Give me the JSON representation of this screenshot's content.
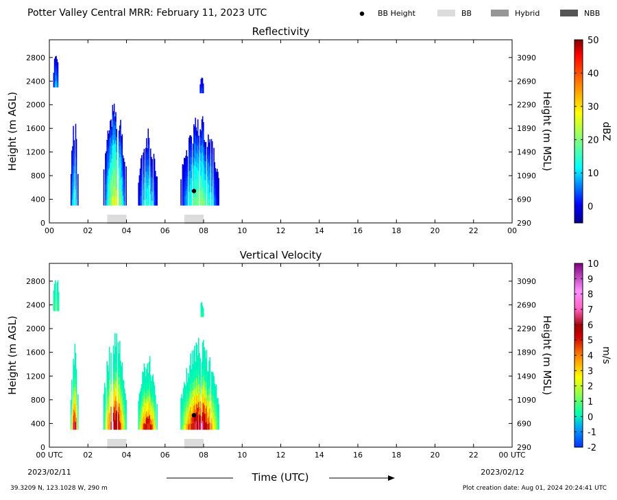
{
  "header": {
    "title": "Potter Valley Central MRR:  February 11, 2023 UTC",
    "legend": [
      {
        "label": "BB Height",
        "marker": "dot",
        "color": "#000000"
      },
      {
        "label": "BB",
        "marker": "box",
        "color": "#dcdcdc"
      },
      {
        "label": "Hybrid",
        "marker": "box",
        "color": "#969696"
      },
      {
        "label": "NBB",
        "marker": "box",
        "color": "#555555"
      }
    ]
  },
  "footer": {
    "location": "39.3209 N, 123.1028 W, 290 m",
    "created": "Plot creation date: Aug 01, 2024 20:24:41 UTC",
    "xaxis_title": "Time (UTC)",
    "start_date": "2023/02/11",
    "end_date": "2023/02/12"
  },
  "chart_data": [
    {
      "type": "heatmap",
      "title": "Reflectivity",
      "xlabel": "Time (UTC)",
      "ylabel": "Height (m AGL)",
      "ylabel_right": "Height (m MSL)",
      "xlim": [
        0,
        24
      ],
      "ylim": [
        0,
        3100
      ],
      "xticks": [
        "00",
        "02",
        "04",
        "06",
        "08",
        "10",
        "12",
        "14",
        "16",
        "18",
        "20",
        "22",
        "00"
      ],
      "yticks": [
        0,
        400,
        800,
        1200,
        1600,
        2000,
        2400,
        2800
      ],
      "yticks_right": [
        290,
        690,
        1090,
        1490,
        1890,
        2290,
        2690,
        3090
      ],
      "colorbar": {
        "label": "dBZ",
        "min": -5,
        "max": 50,
        "ticks": [
          0,
          10,
          20,
          30,
          40,
          50
        ]
      },
      "bb_height": [
        {
          "time": 7.5,
          "height": 540
        }
      ],
      "bb_bands": [
        {
          "start": 3.0,
          "end": 4.0
        },
        {
          "start": 7.0,
          "end": 8.0
        }
      ],
      "echoes": [
        {
          "t0": 0.2,
          "t1": 0.5,
          "bottom": 2300,
          "top": 3000,
          "peak": 8
        },
        {
          "t0": 1.1,
          "t1": 1.5,
          "bottom": 300,
          "top": 1800,
          "peak": 12
        },
        {
          "t0": 2.8,
          "t1": 4.0,
          "bottom": 300,
          "top": 2100,
          "peak": 24
        },
        {
          "t0": 4.6,
          "t1": 5.6,
          "bottom": 300,
          "top": 1600,
          "peak": 12
        },
        {
          "t0": 6.8,
          "t1": 8.8,
          "bottom": 300,
          "top": 1900,
          "peak": 18
        },
        {
          "t0": 7.8,
          "t1": 8.0,
          "bottom": 2200,
          "top": 2500,
          "peak": 4
        }
      ]
    },
    {
      "type": "heatmap",
      "title": "Vertical Velocity",
      "xlabel": "Time (UTC)",
      "ylabel": "Height (m AGL)",
      "ylabel_right": "Height (m MSL)",
      "xlim": [
        0,
        24
      ],
      "ylim": [
        0,
        3100
      ],
      "xticks": [
        "00 UTC",
        "02",
        "04",
        "06",
        "08",
        "10",
        "12",
        "14",
        "16",
        "18",
        "20",
        "22",
        "00 UTC"
      ],
      "yticks": [
        0,
        400,
        800,
        1200,
        1600,
        2000,
        2400,
        2800
      ],
      "yticks_right": [
        290,
        690,
        1090,
        1490,
        1890,
        2290,
        2690,
        3090
      ],
      "colorbar": {
        "label": "m/s",
        "min": -2,
        "max": 10,
        "ticks": [
          -2,
          -1,
          0,
          1,
          2,
          3,
          4,
          5,
          6,
          7,
          8,
          9,
          10
        ]
      },
      "bb_height": [
        {
          "time": 7.5,
          "height": 540
        }
      ],
      "bb_bands": [
        {
          "start": 3.0,
          "end": 4.0
        },
        {
          "start": 7.0,
          "end": 8.0
        }
      ],
      "echoes": [
        {
          "t0": 0.2,
          "t1": 0.5,
          "bottom": 2300,
          "top": 3000,
          "peak": 0.8
        },
        {
          "t0": 1.1,
          "t1": 1.5,
          "bottom": 300,
          "top": 1800,
          "peak": 6
        },
        {
          "t0": 2.8,
          "t1": 4.0,
          "bottom": 300,
          "top": 2100,
          "peak": 6.5
        },
        {
          "t0": 4.6,
          "t1": 5.6,
          "bottom": 300,
          "top": 1600,
          "peak": 5.5
        },
        {
          "t0": 6.8,
          "t1": 8.8,
          "bottom": 300,
          "top": 1900,
          "peak": 6.5
        },
        {
          "t0": 7.8,
          "t1": 8.0,
          "bottom": 2200,
          "top": 2500,
          "peak": 0.5
        }
      ]
    }
  ]
}
